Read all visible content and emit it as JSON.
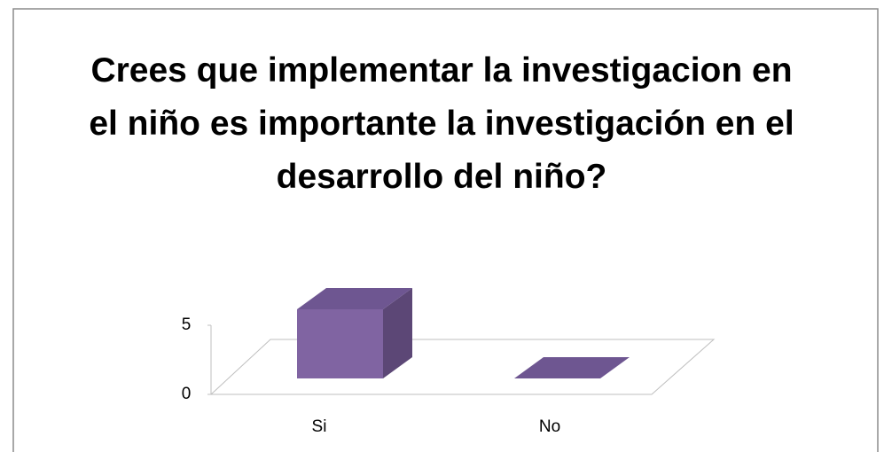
{
  "chart_data": {
    "type": "bar3d",
    "title": "Crees que implementar la investigacion en el niño es importante la investigación en el desarrollo del niño?",
    "categories": [
      "Si",
      "No"
    ],
    "values": [
      5,
      0
    ],
    "color": "#8064a2",
    "ylim": [
      0,
      5
    ],
    "yticks": [
      0,
      5
    ]
  }
}
